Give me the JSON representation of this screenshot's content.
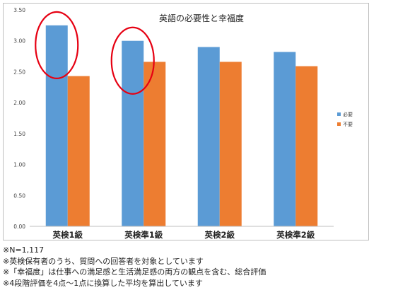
{
  "chart_data": {
    "type": "bar",
    "title": "英語の必要性と幸福度",
    "categories": [
      "英検1級",
      "英検準1級",
      "英検2級",
      "英検準2級"
    ],
    "series": [
      {
        "name": "必要",
        "values": [
          3.25,
          3.0,
          2.9,
          2.82
        ]
      },
      {
        "name": "不要",
        "values": [
          2.43,
          2.66,
          2.66,
          2.59
        ]
      }
    ],
    "ylim": [
      0,
      3.5
    ],
    "y_ticks": [
      "0.00",
      "0.50",
      "1.00",
      "1.50",
      "2.00",
      "2.50",
      "3.00",
      "3.50"
    ],
    "xlabel": "",
    "ylabel": "",
    "grid": false,
    "legend_position": "right",
    "highlighted_categories": [
      0,
      1
    ],
    "colors": {
      "series": [
        "#5b9bd5",
        "#ed7d31"
      ],
      "highlight": "#e60012",
      "axis": "#bfbfbf"
    }
  },
  "notes": [
    "※N=1,117",
    "※英検保有者のうち、質問への回答者を対象としています",
    "※「幸福度」は仕事への満足感と生活満足感の両方の観点を含む、総合評価",
    "※4段階評価を4点～1点に換算した平均を算出しています"
  ]
}
